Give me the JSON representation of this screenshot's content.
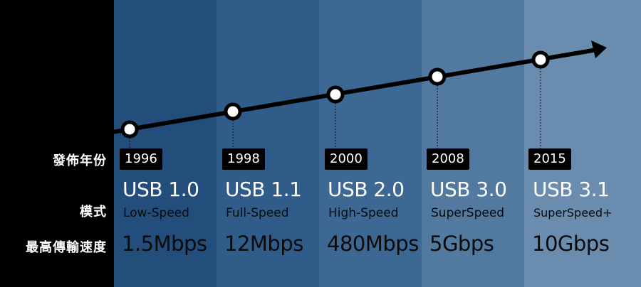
{
  "row_labels": {
    "year": "發佈年份",
    "mode": "模式",
    "speed": "最高傳輸速度"
  },
  "colors": {
    "background": "#000000",
    "columns": [
      "#234e7c",
      "#2f5c88",
      "#3d6893",
      "#52799f",
      "#6a8caf"
    ]
  },
  "versions": [
    {
      "year": "1996",
      "name": "USB 1.0",
      "mode": "Low-Speed",
      "speed": "1.5Mbps"
    },
    {
      "year": "1998",
      "name": "USB 1.1",
      "mode": "Full-Speed",
      "speed": "12Mbps"
    },
    {
      "year": "2000",
      "name": "USB 2.0",
      "mode": "High-Speed",
      "speed": "480Mbps"
    },
    {
      "year": "2008",
      "name": "USB 3.0",
      "mode": "SuperSpeed",
      "speed": "5Gbps"
    },
    {
      "year": "2015",
      "name": "USB 3.1",
      "mode": "SuperSpeed+",
      "speed": "10Gbps"
    }
  ]
}
